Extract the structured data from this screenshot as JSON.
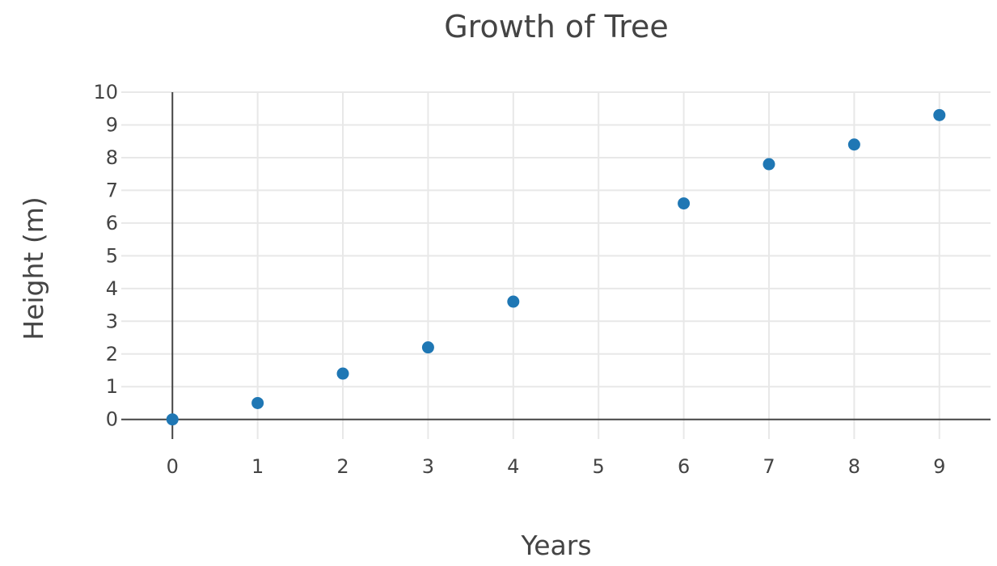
{
  "chart_data": {
    "type": "scatter",
    "title": "Growth of Tree",
    "xlabel": "Years",
    "ylabel": "Height (m)",
    "xlim": [
      -0.6,
      9.6
    ],
    "ylim": [
      -0.6,
      10
    ],
    "x_ticks": [
      0,
      1,
      2,
      3,
      4,
      5,
      6,
      7,
      8,
      9
    ],
    "y_ticks": [
      0,
      1,
      2,
      3,
      4,
      5,
      6,
      7,
      8,
      9,
      10
    ],
    "grid": true,
    "legend": "none",
    "marker_color": "#1f77b4",
    "points": [
      {
        "x": 0,
        "y": 0
      },
      {
        "x": 1,
        "y": 0.5
      },
      {
        "x": 2,
        "y": 1.4
      },
      {
        "x": 3,
        "y": 2.2
      },
      {
        "x": 4,
        "y": 3.6
      },
      {
        "x": 6,
        "y": 6.6
      },
      {
        "x": 7,
        "y": 7.8
      },
      {
        "x": 8,
        "y": 8.4
      },
      {
        "x": 9,
        "y": 9.3
      }
    ]
  }
}
